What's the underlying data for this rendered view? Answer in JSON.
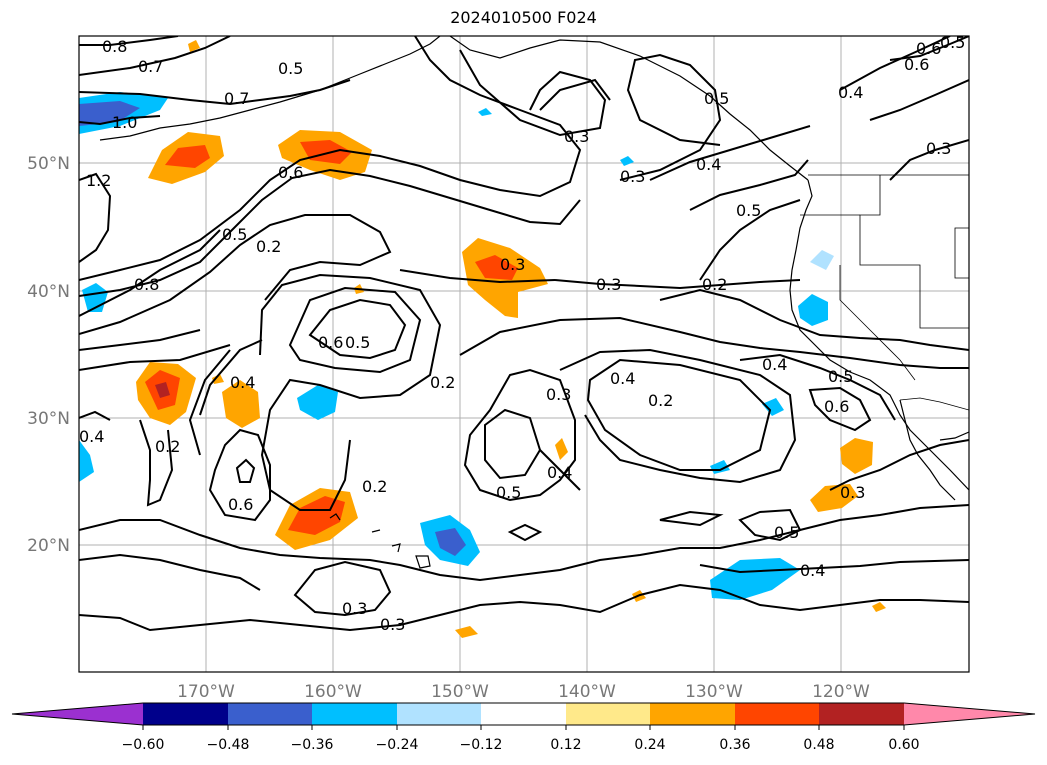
{
  "title": "2024010500 F024",
  "map": {
    "lat_labels": [
      "50°N",
      "40°N",
      "30°N",
      "20°N"
    ],
    "lon_labels": [
      "170°W",
      "160°W",
      "150°W",
      "140°W",
      "130°W",
      "120°W"
    ],
    "contour_labels": [
      "0.8",
      "0.7",
      "0.5",
      "0.7",
      "1.0",
      "1.2",
      "0.6",
      "0.5",
      "0.2",
      "0.8",
      "0.6",
      "0.5",
      "0.4",
      "0.2",
      "0.6",
      "0.2",
      "0.5",
      "0.3",
      "0.3",
      "0.2",
      "0.3",
      "0.4",
      "0.5",
      "0.6",
      "0.4",
      "0.3",
      "0.2",
      "0.4",
      "0.5",
      "0.6",
      "0.5",
      "0.4",
      "0.5",
      "0.3",
      "0.3",
      "0.3",
      "0.6",
      "0.5",
      "0.4",
      "0.4",
      "0.3",
      "0.2",
      "0.4",
      "0.3"
    ]
  },
  "colorbar": {
    "ticks": [
      "−0.60",
      "−0.48",
      "−0.36",
      "−0.24",
      "−0.12",
      "0.12",
      "0.24",
      "0.36",
      "0.48",
      "0.60"
    ],
    "colors": [
      "#9b30d0",
      "#00008b",
      "#3a5fcd",
      "#00bfff",
      "#b0e2ff",
      "#ffffff",
      "#ffe98a",
      "#ffa500",
      "#ff4500",
      "#b22222",
      "#ff88aa"
    ]
  }
}
